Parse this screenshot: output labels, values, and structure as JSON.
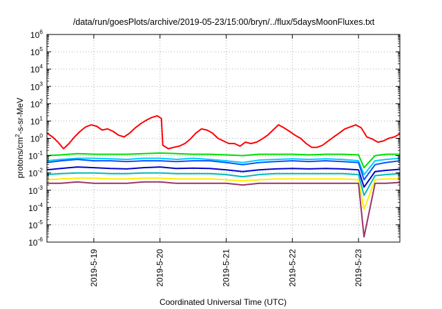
{
  "chart_data": {
    "type": "line",
    "title": "/data/run/goesPlots/archive/2019-05-23/15:00/bryn/../flux/5daysMoonFluxes.txt",
    "xlabel": "Coordinated Universal Time (UTC)",
    "ylabel": {
      "prefix": "protons/cm",
      "sup": "2",
      "suffix": "-s-sr-MeV"
    },
    "yscale": "log",
    "ylim": [
      1e-06,
      1000000.0
    ],
    "xlim": [
      "2019-05-18T07:00",
      "2019-05-23T15:00"
    ],
    "grid": true,
    "yticks": [
      {
        "value": 1e-06,
        "base": "10",
        "exp": "-6"
      },
      {
        "value": 1e-05,
        "base": "10",
        "exp": "-5"
      },
      {
        "value": 0.0001,
        "base": "10",
        "exp": "-4"
      },
      {
        "value": 0.001,
        "base": "10",
        "exp": "-3"
      },
      {
        "value": 0.01,
        "base": "10",
        "exp": "-2"
      },
      {
        "value": 0.1,
        "base": "10",
        "exp": "-1"
      },
      {
        "value": 1,
        "base": "10",
        "exp": "0"
      },
      {
        "value": 10,
        "base": "10",
        "exp": "1"
      },
      {
        "value": 100,
        "base": "10",
        "exp": "2"
      },
      {
        "value": 1000,
        "base": "10",
        "exp": "3"
      },
      {
        "value": 10000,
        "base": "10",
        "exp": "4"
      },
      {
        "value": 100000,
        "base": "10",
        "exp": "5"
      },
      {
        "value": 1000000,
        "base": "10",
        "exp": "6"
      }
    ],
    "xticks": [
      {
        "value": "2019-05-19T00:00",
        "label": "2019-5-19"
      },
      {
        "value": "2019-05-20T00:00",
        "label": "2019-5-20"
      },
      {
        "value": "2019-05-21T00:00",
        "label": "2019-5-21"
      },
      {
        "value": "2019-05-22T00:00",
        "label": "2019-5-22"
      },
      {
        "value": "2019-05-23T00:00",
        "label": "2019-5-23"
      }
    ],
    "series": [
      {
        "color": "#ff0000",
        "x": [
          "2019-05-18T07:00",
          "2019-05-18T09:00",
          "2019-05-18T11:00",
          "2019-05-18T13:00",
          "2019-05-18T15:00",
          "2019-05-18T17:00",
          "2019-05-18T19:00",
          "2019-05-18T21:00",
          "2019-05-18T23:00",
          "2019-05-19T01:00",
          "2019-05-19T03:00",
          "2019-05-19T05:00",
          "2019-05-19T07:00",
          "2019-05-19T09:00",
          "2019-05-19T11:00",
          "2019-05-19T13:00",
          "2019-05-19T15:00",
          "2019-05-19T17:00",
          "2019-05-19T19:00",
          "2019-05-19T21:00",
          "2019-05-19T23:00",
          "2019-05-20T00:30",
          "2019-05-20T01:00",
          "2019-05-20T03:00",
          "2019-05-20T05:00",
          "2019-05-20T07:00",
          "2019-05-20T09:00",
          "2019-05-20T11:00",
          "2019-05-20T13:00",
          "2019-05-20T15:00",
          "2019-05-20T17:00",
          "2019-05-20T19:00",
          "2019-05-20T21:00",
          "2019-05-20T23:00",
          "2019-05-21T01:00",
          "2019-05-21T03:00",
          "2019-05-21T05:00",
          "2019-05-21T07:00",
          "2019-05-21T09:00",
          "2019-05-21T11:00",
          "2019-05-21T13:00",
          "2019-05-21T15:00",
          "2019-05-21T17:00",
          "2019-05-21T19:00",
          "2019-05-21T21:00",
          "2019-05-21T23:00",
          "2019-05-22T01:00",
          "2019-05-22T03:00",
          "2019-05-22T05:00",
          "2019-05-22T07:00",
          "2019-05-22T09:00",
          "2019-05-22T11:00",
          "2019-05-22T13:00",
          "2019-05-22T15:00",
          "2019-05-22T17:00",
          "2019-05-22T19:00",
          "2019-05-22T21:00",
          "2019-05-22T23:00",
          "2019-05-23T01:00",
          "2019-05-23T03:00",
          "2019-05-23T05:00",
          "2019-05-23T07:00",
          "2019-05-23T09:00",
          "2019-05-23T11:00",
          "2019-05-23T13:00",
          "2019-05-23T15:00"
        ],
        "values": [
          2.0,
          1.2,
          0.6,
          0.25,
          0.5,
          1.2,
          2.5,
          4.5,
          6.0,
          5.0,
          3.0,
          3.5,
          2.5,
          1.5,
          1.2,
          2.0,
          4.0,
          7.0,
          11,
          16,
          20,
          14,
          0.4,
          0.25,
          0.3,
          0.35,
          0.5,
          0.9,
          2.0,
          3.5,
          3.0,
          2.0,
          1.0,
          0.7,
          0.5,
          0.5,
          0.35,
          0.6,
          0.5,
          0.6,
          0.9,
          1.5,
          3.0,
          6.0,
          4.0,
          2.5,
          1.5,
          1.0,
          0.5,
          0.3,
          0.3,
          0.4,
          0.7,
          1.2,
          2.0,
          3.5,
          4.5,
          6.0,
          4.0,
          1.2,
          0.9,
          0.6,
          0.7,
          1.0,
          1.2,
          1.8
        ]
      },
      {
        "color": "#00dd00",
        "x": [
          "2019-05-18T07:00",
          "2019-05-18T12:00",
          "2019-05-18T18:00",
          "2019-05-19T00:00",
          "2019-05-19T06:00",
          "2019-05-19T12:00",
          "2019-05-19T18:00",
          "2019-05-20T00:00",
          "2019-05-20T06:00",
          "2019-05-20T12:00",
          "2019-05-20T18:00",
          "2019-05-21T00:00",
          "2019-05-21T06:00",
          "2019-05-21T12:00",
          "2019-05-21T18:00",
          "2019-05-22T00:00",
          "2019-05-22T06:00",
          "2019-05-22T12:00",
          "2019-05-22T18:00",
          "2019-05-23T00:00",
          "2019-05-23T02:00",
          "2019-05-23T06:00",
          "2019-05-23T10:00",
          "2019-05-23T15:00"
        ],
        "values": [
          0.1,
          0.11,
          0.13,
          0.12,
          0.12,
          0.12,
          0.13,
          0.14,
          0.13,
          0.12,
          0.12,
          0.11,
          0.1,
          0.12,
          0.12,
          0.12,
          0.11,
          0.12,
          0.12,
          0.11,
          0.02,
          0.1,
          0.12,
          0.12
        ]
      },
      {
        "color": "#00ccff",
        "x": [
          "2019-05-18T07:00",
          "2019-05-18T12:00",
          "2019-05-18T18:00",
          "2019-05-19T00:00",
          "2019-05-19T06:00",
          "2019-05-19T12:00",
          "2019-05-19T18:00",
          "2019-05-20T00:00",
          "2019-05-20T06:00",
          "2019-05-20T12:00",
          "2019-05-20T18:00",
          "2019-05-21T00:00",
          "2019-05-21T06:00",
          "2019-05-21T12:00",
          "2019-05-21T18:00",
          "2019-05-22T00:00",
          "2019-05-22T06:00",
          "2019-05-22T12:00",
          "2019-05-22T18:00",
          "2019-05-23T00:00",
          "2019-05-23T02:00",
          "2019-05-23T06:00",
          "2019-05-23T10:00",
          "2019-05-23T15:00"
        ],
        "values": [
          0.05,
          0.06,
          0.07,
          0.07,
          0.065,
          0.06,
          0.07,
          0.07,
          0.06,
          0.07,
          0.06,
          0.05,
          0.04,
          0.055,
          0.06,
          0.065,
          0.06,
          0.065,
          0.06,
          0.05,
          0.008,
          0.05,
          0.06,
          0.07
        ]
      },
      {
        "color": "#0055ff",
        "x": [
          "2019-05-18T07:00",
          "2019-05-18T12:00",
          "2019-05-18T18:00",
          "2019-05-19T00:00",
          "2019-05-19T06:00",
          "2019-05-19T12:00",
          "2019-05-19T18:00",
          "2019-05-20T00:00",
          "2019-05-20T06:00",
          "2019-05-20T12:00",
          "2019-05-20T18:00",
          "2019-05-21T00:00",
          "2019-05-21T06:00",
          "2019-05-21T12:00",
          "2019-05-21T18:00",
          "2019-05-22T00:00",
          "2019-05-22T06:00",
          "2019-05-22T12:00",
          "2019-05-22T18:00",
          "2019-05-23T00:00",
          "2019-05-23T02:00",
          "2019-05-23T06:00",
          "2019-05-23T10:00",
          "2019-05-23T15:00"
        ],
        "values": [
          0.04,
          0.05,
          0.06,
          0.05,
          0.05,
          0.045,
          0.05,
          0.05,
          0.045,
          0.05,
          0.05,
          0.04,
          0.03,
          0.04,
          0.045,
          0.05,
          0.045,
          0.05,
          0.045,
          0.04,
          0.004,
          0.03,
          0.04,
          0.05
        ]
      },
      {
        "color": "#0000cc",
        "x": [
          "2019-05-18T07:00",
          "2019-05-18T12:00",
          "2019-05-18T18:00",
          "2019-05-19T00:00",
          "2019-05-19T06:00",
          "2019-05-19T12:00",
          "2019-05-19T18:00",
          "2019-05-20T00:00",
          "2019-05-20T06:00",
          "2019-05-20T12:00",
          "2019-05-20T18:00",
          "2019-05-21T00:00",
          "2019-05-21T06:00",
          "2019-05-21T12:00",
          "2019-05-21T18:00",
          "2019-05-22T00:00",
          "2019-05-22T06:00",
          "2019-05-22T12:00",
          "2019-05-22T18:00",
          "2019-05-23T00:00",
          "2019-05-23T02:00",
          "2019-05-23T06:00",
          "2019-05-23T10:00",
          "2019-05-23T15:00"
        ],
        "values": [
          0.015,
          0.018,
          0.022,
          0.02,
          0.018,
          0.017,
          0.02,
          0.022,
          0.018,
          0.019,
          0.018,
          0.015,
          0.012,
          0.015,
          0.017,
          0.018,
          0.017,
          0.018,
          0.017,
          0.015,
          0.0015,
          0.012,
          0.014,
          0.016
        ]
      },
      {
        "color": "#00bbbb",
        "x": [
          "2019-05-18T07:00",
          "2019-05-18T12:00",
          "2019-05-18T18:00",
          "2019-05-19T00:00",
          "2019-05-19T06:00",
          "2019-05-19T12:00",
          "2019-05-19T18:00",
          "2019-05-20T00:00",
          "2019-05-20T06:00",
          "2019-05-20T12:00",
          "2019-05-20T18:00",
          "2019-05-21T00:00",
          "2019-05-21T06:00",
          "2019-05-21T12:00",
          "2019-05-21T18:00",
          "2019-05-22T00:00",
          "2019-05-22T06:00",
          "2019-05-22T12:00",
          "2019-05-22T18:00",
          "2019-05-23T00:00",
          "2019-05-23T02:00",
          "2019-05-23T06:00",
          "2019-05-23T10:00",
          "2019-05-23T15:00"
        ],
        "values": [
          0.008,
          0.009,
          0.01,
          0.01,
          0.009,
          0.009,
          0.01,
          0.01,
          0.009,
          0.009,
          0.009,
          0.008,
          0.006,
          0.008,
          0.009,
          0.009,
          0.009,
          0.009,
          0.009,
          0.008,
          0.0005,
          0.007,
          0.008,
          0.009
        ]
      },
      {
        "color": "#ffee00",
        "x": [
          "2019-05-18T07:00",
          "2019-05-18T12:00",
          "2019-05-18T18:00",
          "2019-05-19T00:00",
          "2019-05-19T06:00",
          "2019-05-19T12:00",
          "2019-05-19T18:00",
          "2019-05-20T00:00",
          "2019-05-20T06:00",
          "2019-05-20T12:00",
          "2019-05-20T18:00",
          "2019-05-21T00:00",
          "2019-05-21T06:00",
          "2019-05-21T12:00",
          "2019-05-21T18:00",
          "2019-05-22T00:00",
          "2019-05-22T06:00",
          "2019-05-22T12:00",
          "2019-05-22T18:00",
          "2019-05-23T00:00",
          "2019-05-23T02:00",
          "2019-05-23T06:00",
          "2019-05-23T10:00",
          "2019-05-23T15:00"
        ],
        "values": [
          0.004,
          0.0045,
          0.005,
          0.005,
          0.0045,
          0.0045,
          0.005,
          0.005,
          0.0045,
          0.0045,
          0.0045,
          0.004,
          0.0035,
          0.004,
          0.0045,
          0.0045,
          0.0045,
          0.0045,
          0.0045,
          0.004,
          8e-05,
          0.004,
          0.0045,
          0.0045
        ]
      },
      {
        "color": "#993366",
        "x": [
          "2019-05-18T07:00",
          "2019-05-18T12:00",
          "2019-05-18T18:00",
          "2019-05-19T00:00",
          "2019-05-19T06:00",
          "2019-05-19T12:00",
          "2019-05-19T18:00",
          "2019-05-20T00:00",
          "2019-05-20T06:00",
          "2019-05-20T12:00",
          "2019-05-20T18:00",
          "2019-05-21T00:00",
          "2019-05-21T06:00",
          "2019-05-21T12:00",
          "2019-05-21T18:00",
          "2019-05-22T00:00",
          "2019-05-22T06:00",
          "2019-05-22T12:00",
          "2019-05-22T18:00",
          "2019-05-23T00:00",
          "2019-05-23T02:00",
          "2019-05-23T06:00",
          "2019-05-23T10:00",
          "2019-05-23T15:00"
        ],
        "values": [
          0.0025,
          0.0025,
          0.003,
          0.0025,
          0.0025,
          0.0025,
          0.003,
          0.003,
          0.0025,
          0.0025,
          0.0025,
          0.0025,
          0.002,
          0.0025,
          0.0025,
          0.0025,
          0.0025,
          0.0025,
          0.0025,
          0.0025,
          2e-06,
          0.0025,
          0.0025,
          0.0028
        ]
      }
    ]
  }
}
